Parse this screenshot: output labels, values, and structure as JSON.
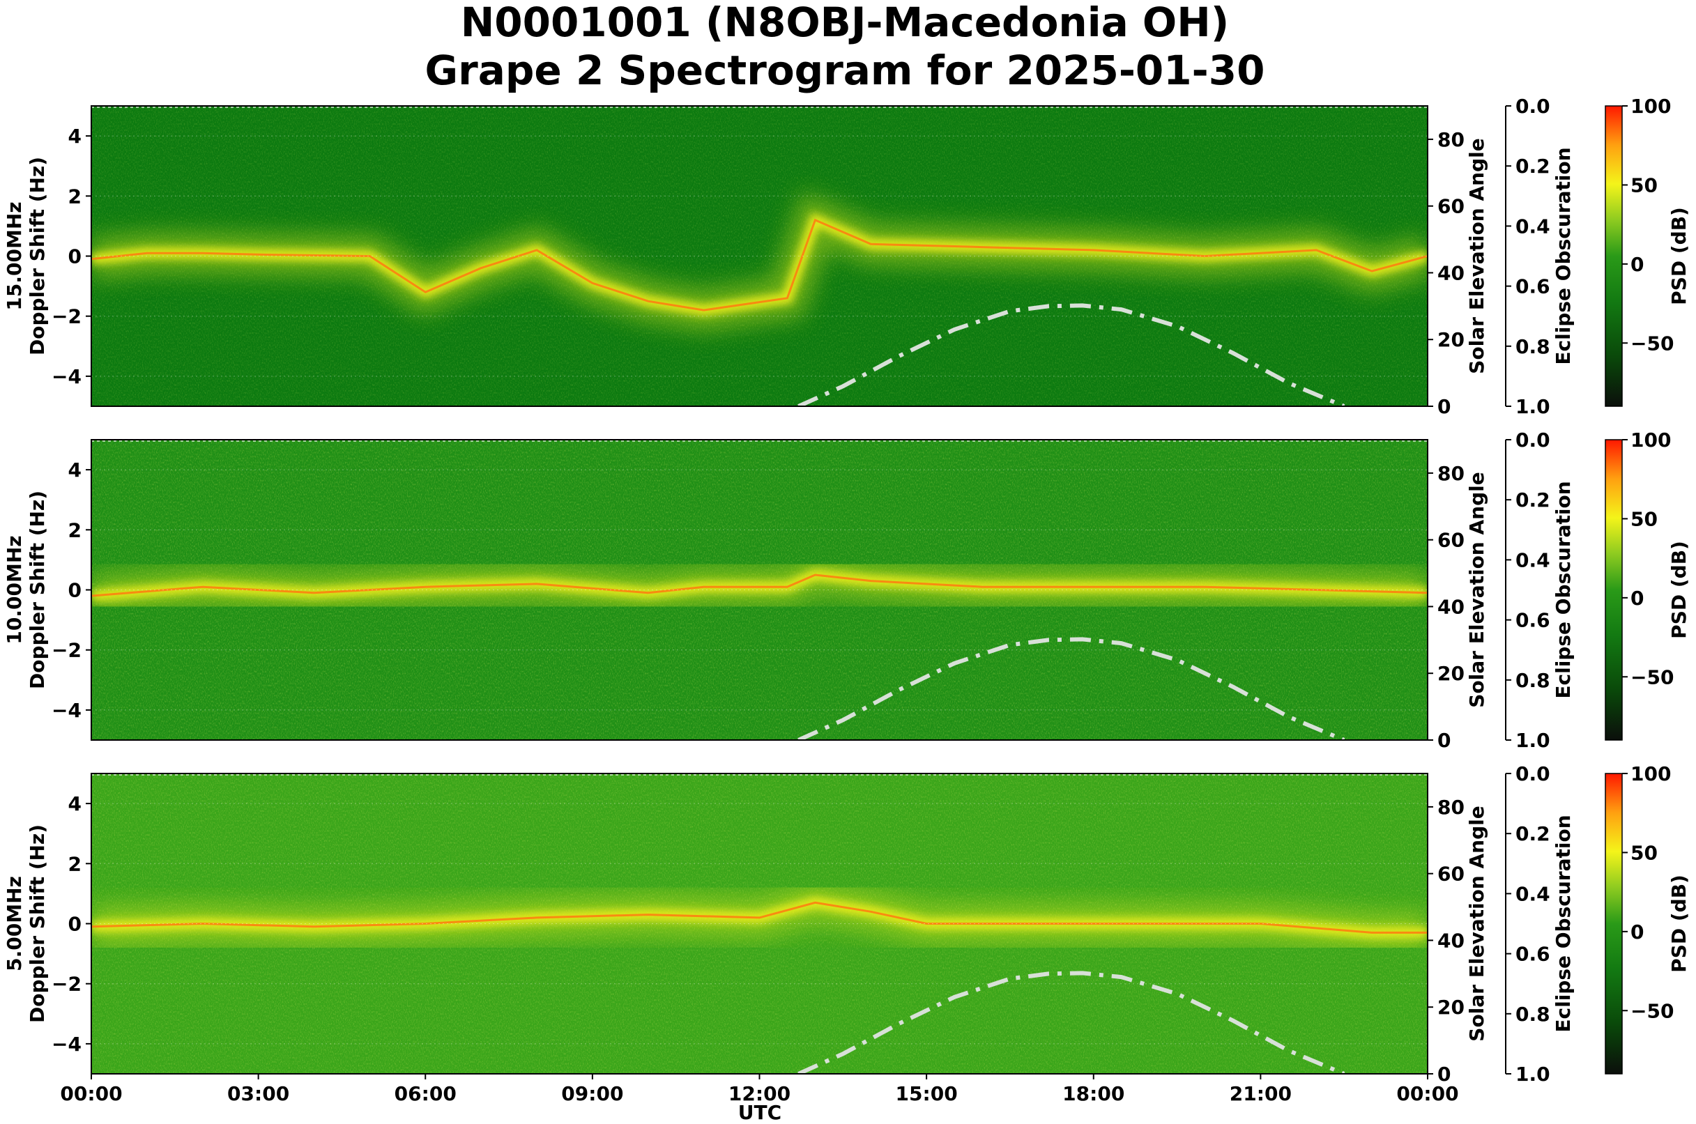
{
  "title_line1": "N0001001 (N8OBJ-Macedonia OH)",
  "title_line2": "Grape 2 Spectrogram for 2025-01-30",
  "xlabel": "UTC",
  "y_right_label": "Solar Elevation Angle",
  "y_eclipse_label": "Eclipse Obscuration",
  "colorbar_label": "PSD (dB)",
  "colors": {
    "colormap": [
      "#0b0f0b",
      "#0a5a0a",
      "#1e8c14",
      "#7cc21e",
      "#f5f51c",
      "#ff9d10",
      "#ff1a00"
    ],
    "solar_curve": "#d8e0d8",
    "band_line": "#f0d000"
  },
  "chart_data": {
    "type": "heatmap",
    "x_ticks": [
      "00:00",
      "03:00",
      "06:00",
      "09:00",
      "12:00",
      "15:00",
      "18:00",
      "21:00",
      "00:00"
    ],
    "xlim_hours": [
      0,
      24
    ],
    "ylim_doppler_hz": [
      -5,
      5
    ],
    "y_ticks": [
      "−4",
      "−2",
      "0",
      "2",
      "4"
    ],
    "y_right_ticks": [
      "0",
      "20",
      "40",
      "60",
      "80"
    ],
    "y_right_lim": [
      0,
      90
    ],
    "eclipse_ticks": [
      "0.0",
      "0.2",
      "0.4",
      "0.6",
      "0.8",
      "1.0"
    ],
    "colorbar_ticks": [
      "100",
      "50",
      "0",
      "−50"
    ],
    "colorbar_lim_db": [
      -90,
      100
    ],
    "solar_elevation_curve": {
      "x_hours": [
        12.7,
        13.5,
        14.5,
        15.5,
        16.5,
        17.2,
        17.8,
        18.5,
        19.5,
        20.5,
        21.5,
        22.5
      ],
      "y_deg": [
        0,
        6,
        15,
        23,
        28.5,
        30,
        30.2,
        29,
        24,
        16,
        7,
        0
      ]
    },
    "panels": [
      {
        "freq_label": "15.00MHz",
        "ylabel": "Doppler Shift (Hz)",
        "band_center_hz": [
          [
            0,
            -0.1
          ],
          [
            1,
            0.1
          ],
          [
            2,
            0.1
          ],
          [
            3,
            0.05
          ],
          [
            5,
            0
          ],
          [
            6,
            -1.2
          ],
          [
            7,
            -0.4
          ],
          [
            8,
            0.2
          ],
          [
            9,
            -0.9
          ],
          [
            10,
            -1.5
          ],
          [
            11,
            -1.8
          ],
          [
            12.5,
            -1.4
          ],
          [
            13,
            1.2
          ],
          [
            14,
            0.4
          ],
          [
            16,
            0.3
          ],
          [
            18,
            0.2
          ],
          [
            20,
            0
          ],
          [
            22,
            0.2
          ],
          [
            23,
            -0.5
          ],
          [
            24,
            0
          ]
        ]
      },
      {
        "freq_label": "10.00MHz",
        "ylabel": "Doppler Shift (Hz)",
        "band_center_hz": [
          [
            0,
            -0.2
          ],
          [
            2,
            0.1
          ],
          [
            4,
            -0.1
          ],
          [
            6,
            0.1
          ],
          [
            8,
            0.2
          ],
          [
            10,
            -0.1
          ],
          [
            11,
            0.1
          ],
          [
            12.5,
            0.1
          ],
          [
            13,
            0.5
          ],
          [
            14,
            0.3
          ],
          [
            16,
            0.1
          ],
          [
            18,
            0.1
          ],
          [
            20,
            0.1
          ],
          [
            22,
            0
          ],
          [
            24,
            -0.1
          ]
        ]
      },
      {
        "freq_label": "5.00MHz",
        "ylabel": "Doppler Shift (Hz)",
        "band_center_hz": [
          [
            0,
            -0.1
          ],
          [
            2,
            0
          ],
          [
            4,
            -0.1
          ],
          [
            6,
            0
          ],
          [
            8,
            0.2
          ],
          [
            10,
            0.3
          ],
          [
            12,
            0.2
          ],
          [
            13,
            0.7
          ],
          [
            14,
            0.4
          ],
          [
            15,
            0
          ],
          [
            18,
            0
          ],
          [
            21,
            0
          ],
          [
            23,
            -0.3
          ],
          [
            24,
            -0.3
          ]
        ]
      }
    ]
  }
}
